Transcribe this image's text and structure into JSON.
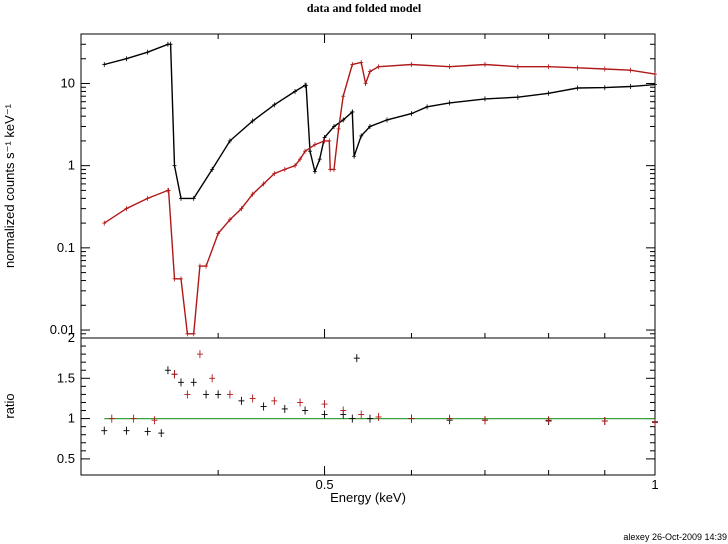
{
  "chart_data": [
    {
      "type": "line",
      "title": "data and folded model",
      "ylabel": "normalized counts s⁻¹ keV⁻¹",
      "xlabel": "",
      "xscale": "log",
      "yscale": "log",
      "xlim": [
        0.3,
        1.0
      ],
      "ylim": [
        0.008,
        40
      ],
      "y_ticks": [
        "10",
        "1",
        "0.1",
        "0.01"
      ],
      "y_tick_values": [
        10,
        1,
        0.1,
        0.01
      ],
      "series": [
        {
          "color": "#000000",
          "x": [
            0.315,
            0.33,
            0.345,
            0.36,
            0.362,
            0.365,
            0.37,
            0.38,
            0.395,
            0.41,
            0.43,
            0.45,
            0.47,
            0.48,
            0.481,
            0.485,
            0.49,
            0.495,
            0.5,
            0.51,
            0.52,
            0.53,
            0.53,
            0.532,
            0.54,
            0.55,
            0.57,
            0.6,
            0.62,
            0.65,
            0.7,
            0.75,
            0.8,
            0.85,
            0.9,
            0.95,
            1.0
          ],
          "y": [
            17,
            20,
            24,
            30,
            30,
            1.0,
            0.4,
            0.4,
            0.9,
            2.0,
            3.5,
            5.5,
            8.0,
            9.5,
            9.5,
            1.5,
            0.85,
            1.2,
            2.2,
            3.0,
            3.6,
            4.5,
            4.5,
            1.3,
            2.3,
            3.0,
            3.6,
            4.3,
            5.2,
            5.8,
            6.5,
            6.8,
            7.6,
            8.8,
            8.9,
            9.2,
            9.7
          ]
        },
        {
          "color": "#b01818",
          "x": [
            0.315,
            0.33,
            0.345,
            0.36,
            0.3605,
            0.365,
            0.37,
            0.375,
            0.38,
            0.385,
            0.39,
            0.4,
            0.41,
            0.42,
            0.43,
            0.44,
            0.45,
            0.46,
            0.47,
            0.475,
            0.48,
            0.49,
            0.5,
            0.505,
            0.506,
            0.51,
            0.515,
            0.52,
            0.53,
            0.54,
            0.545,
            0.55,
            0.56,
            0.6,
            0.65,
            0.7,
            0.75,
            0.8,
            0.85,
            0.9,
            0.95,
            1.0
          ],
          "y": [
            0.2,
            0.3,
            0.4,
            0.5,
            0.5,
            0.042,
            0.042,
            0.009,
            0.009,
            0.06,
            0.06,
            0.15,
            0.22,
            0.3,
            0.45,
            0.6,
            0.8,
            0.9,
            1.0,
            1.2,
            1.5,
            1.8,
            2.0,
            2.0,
            0.9,
            0.9,
            2.8,
            7.0,
            17,
            18,
            10,
            14,
            16,
            17,
            16,
            17,
            16,
            16,
            15.5,
            15,
            14.5,
            13
          ]
        }
      ]
    },
    {
      "type": "scatter",
      "xlabel": "Energy (keV)",
      "ylabel": "ratio",
      "xscale": "log",
      "xlim": [
        0.3,
        1.0
      ],
      "ylim": [
        0.3,
        2.0
      ],
      "x_ticks": [
        "0.5",
        "1"
      ],
      "x_tick_values": [
        0.5,
        1.0
      ],
      "y_ticks": [
        "2",
        "1.5",
        "1",
        "0.5"
      ],
      "y_tick_values": [
        2,
        1.5,
        1,
        0.5
      ],
      "reference_line": {
        "y": 1,
        "color": "#3aa03a"
      },
      "series": [
        {
          "color": "#000000",
          "x": [
            0.315,
            0.33,
            0.345,
            0.355,
            0.36,
            0.365,
            0.37,
            0.38,
            0.39,
            0.4,
            0.42,
            0.44,
            0.46,
            0.48,
            0.5,
            0.52,
            0.53,
            0.535,
            0.55,
            0.6,
            0.65,
            0.7,
            0.8,
            0.9,
            1.0
          ],
          "y": [
            0.85,
            0.85,
            0.84,
            0.82,
            1.6,
            1.55,
            1.45,
            1.45,
            1.3,
            1.3,
            1.22,
            1.15,
            1.12,
            1.1,
            1.05,
            1.05,
            1.0,
            1.75,
            1.0,
            1.0,
            0.98,
            0.98,
            0.97,
            0.97,
            0.96
          ]
        },
        {
          "color": "#b01818",
          "x": [
            0.32,
            0.335,
            0.35,
            0.365,
            0.375,
            0.385,
            0.395,
            0.41,
            0.43,
            0.45,
            0.475,
            0.5,
            0.52,
            0.54,
            0.56,
            0.6,
            0.65,
            0.7,
            0.8,
            0.9,
            1.0
          ],
          "y": [
            1.0,
            1.0,
            0.98,
            1.55,
            1.3,
            1.8,
            1.5,
            1.3,
            1.25,
            1.22,
            1.2,
            1.18,
            1.1,
            1.05,
            1.02,
            1.0,
            1.0,
            0.98,
            0.98,
            0.97,
            0.95
          ]
        }
      ]
    }
  ],
  "footer": "alexey 26-Oct-2009 14:39"
}
